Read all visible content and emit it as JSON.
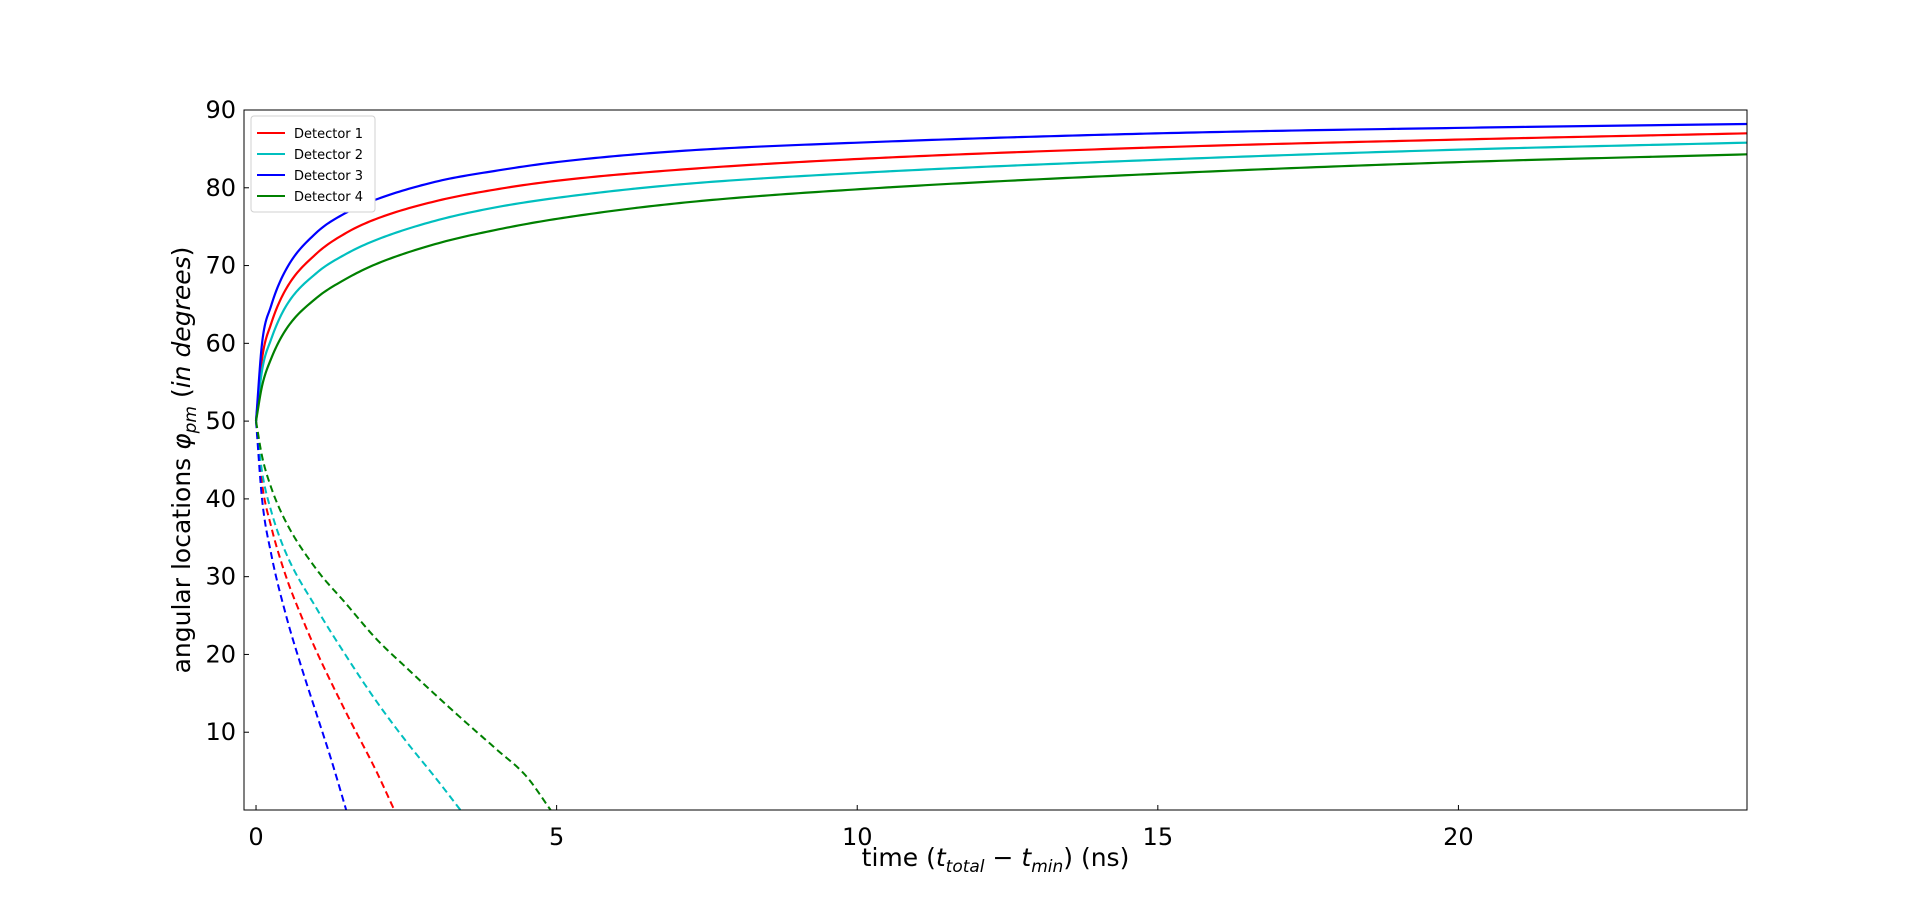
{
  "chart_data": {
    "type": "line",
    "title": "",
    "xlabel": "time (t_total − t_min) (ns)",
    "ylabel": "angular locations φ_pm (in degrees)",
    "xlim": [
      -0.2,
      24.8
    ],
    "ylim": [
      0,
      90
    ],
    "xticks": [
      "0",
      "5",
      "10",
      "15",
      "20"
    ],
    "yticks": [
      "10",
      "20",
      "30",
      "40",
      "50",
      "60",
      "70",
      "80",
      "90"
    ],
    "grid": false,
    "legend_position": "upper-left",
    "series": [
      {
        "name": "Detector 1",
        "color": "#ff0000",
        "style": "solid",
        "x": [
          0,
          0.1,
          0.25,
          0.5,
          1,
          1.5,
          2,
          3,
          4,
          5,
          7,
          10,
          15,
          20,
          24.8
        ],
        "y": [
          50,
          58,
          62.5,
          67,
          71.5,
          74.2,
          76,
          78.3,
          79.8,
          80.9,
          82.3,
          83.7,
          85.2,
          86.2,
          87
        ]
      },
      {
        "name": "Detector 2",
        "color": "#00bfbf",
        "style": "solid",
        "x": [
          0,
          0.1,
          0.25,
          0.5,
          1,
          1.5,
          2,
          3,
          4,
          5,
          7,
          10,
          15,
          20,
          24.8
        ],
        "y": [
          50,
          56.5,
          60.5,
          64.8,
          69,
          71.5,
          73.3,
          75.8,
          77.5,
          78.7,
          80.4,
          81.9,
          83.6,
          84.9,
          85.8
        ]
      },
      {
        "name": "Detector 3",
        "color": "#0000ff",
        "style": "solid",
        "x": [
          0,
          0.1,
          0.25,
          0.5,
          1,
          1.5,
          2,
          3,
          4,
          5,
          7,
          10,
          15,
          20,
          24.8
        ],
        "y": [
          50,
          60,
          64.8,
          69.5,
          74.2,
          76.8,
          78.5,
          80.8,
          82.2,
          83.3,
          84.7,
          85.8,
          87,
          87.7,
          88.2
        ]
      },
      {
        "name": "Detector 4",
        "color": "#008000",
        "style": "solid",
        "x": [
          0,
          0.1,
          0.25,
          0.5,
          1,
          1.5,
          2,
          3,
          4,
          5,
          7,
          10,
          15,
          20,
          24.8
        ],
        "y": [
          50,
          54.5,
          58,
          61.8,
          65.8,
          68.3,
          70.2,
          72.8,
          74.6,
          76,
          78,
          79.8,
          81.8,
          83.3,
          84.3
        ]
      },
      {
        "color": "#ff0000",
        "style": "dashed",
        "x": [
          0,
          0.1,
          0.25,
          0.5,
          0.75,
          1,
          1.5,
          2,
          2.3
        ],
        "y": [
          50,
          42,
          36.5,
          30,
          25,
          20.5,
          12.5,
          5,
          0
        ]
      },
      {
        "color": "#00bfbf",
        "style": "dashed",
        "x": [
          0,
          0.1,
          0.25,
          0.5,
          1,
          1.5,
          2,
          2.5,
          3,
          3.4
        ],
        "y": [
          50,
          43.5,
          38.5,
          33,
          26,
          19.8,
          14,
          8.8,
          4,
          0
        ]
      },
      {
        "color": "#0000ff",
        "style": "dashed",
        "x": [
          0,
          0.1,
          0.25,
          0.5,
          0.75,
          1,
          1.25,
          1.5
        ],
        "y": [
          50,
          40,
          33,
          25,
          18.5,
          12.5,
          6.5,
          0
        ]
      },
      {
        "color": "#008000",
        "style": "dashed",
        "x": [
          0,
          0.1,
          0.25,
          0.5,
          1,
          1.5,
          2,
          2.5,
          3,
          3.5,
          4,
          4.5,
          4.9
        ],
        "y": [
          50,
          45.5,
          41.5,
          37,
          31,
          26.5,
          22,
          18.3,
          14.7,
          11.2,
          7.8,
          4.3,
          0
        ]
      }
    ]
  }
}
